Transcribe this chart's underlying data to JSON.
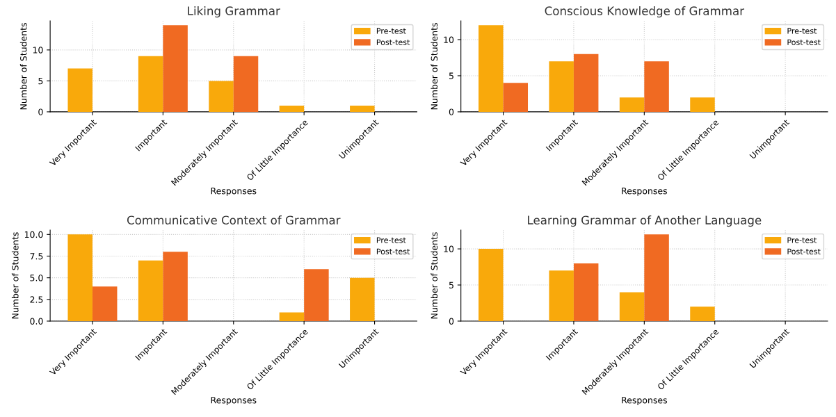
{
  "chart_data": [
    {
      "type": "bar",
      "title": "Liking Grammar",
      "xlabel": "Responses",
      "ylabel": "Number of Students",
      "categories": [
        "Very Important",
        "Important",
        "Moderately Important",
        "Of Little Importance",
        "Unimportant"
      ],
      "ylim": [
        0,
        14.7
      ],
      "yticks": [
        0,
        5,
        10
      ],
      "grid": true,
      "legend": "top right",
      "series": [
        {
          "name": "Pre-test",
          "color": "#f9a90b",
          "values": [
            7,
            9,
            5,
            1,
            1
          ]
        },
        {
          "name": "Post-test",
          "color": "#f06a22",
          "values": [
            0,
            14,
            9,
            0,
            0
          ]
        }
      ]
    },
    {
      "type": "bar",
      "title": "Conscious Knowledge of Grammar",
      "xlabel": "Responses",
      "ylabel": "Number of Students",
      "categories": [
        "Very Important",
        "Important",
        "Moderately Important",
        "Of Little Importance",
        "Unimportant"
      ],
      "ylim": [
        0,
        12.6
      ],
      "yticks": [
        0,
        5,
        10
      ],
      "grid": true,
      "legend": "top right",
      "series": [
        {
          "name": "Pre-test",
          "color": "#f9a90b",
          "values": [
            12,
            7,
            2,
            2,
            0
          ]
        },
        {
          "name": "Post-test",
          "color": "#f06a22",
          "values": [
            4,
            8,
            7,
            0,
            0
          ]
        }
      ]
    },
    {
      "type": "bar",
      "title": "Communicative Context of Grammar",
      "xlabel": "Responses",
      "ylabel": "Number of Students",
      "categories": [
        "Very Important",
        "Important",
        "Moderately Important",
        "Of Little Importance",
        "Unimportant"
      ],
      "ylim": [
        0,
        10.5
      ],
      "yticks": [
        {
          "value": 0,
          "label": "0.0"
        },
        2.5,
        {
          "value": 5,
          "label": "5.0"
        },
        7.5,
        {
          "value": 10,
          "label": "10.0"
        }
      ],
      "grid": true,
      "legend": "top right",
      "series": [
        {
          "name": "Pre-test",
          "color": "#f9a90b",
          "values": [
            10,
            7,
            0,
            1,
            5
          ]
        },
        {
          "name": "Post-test",
          "color": "#f06a22",
          "values": [
            4,
            8,
            0,
            6,
            0
          ]
        }
      ]
    },
    {
      "type": "bar",
      "title": "Learning Grammar of Another Language",
      "xlabel": "Responses",
      "ylabel": "Number of Students",
      "categories": [
        "Very Important",
        "Important",
        "Moderately Important",
        "Of Little Importance",
        "Unimportant"
      ],
      "ylim": [
        0,
        12.6
      ],
      "yticks": [
        0,
        5,
        10
      ],
      "grid": true,
      "legend": "top right",
      "series": [
        {
          "name": "Pre-test",
          "color": "#f9a90b",
          "values": [
            10,
            7,
            4,
            2,
            0
          ]
        },
        {
          "name": "Post-test",
          "color": "#f06a22",
          "values": [
            0,
            8,
            12,
            0,
            0
          ]
        }
      ]
    }
  ]
}
